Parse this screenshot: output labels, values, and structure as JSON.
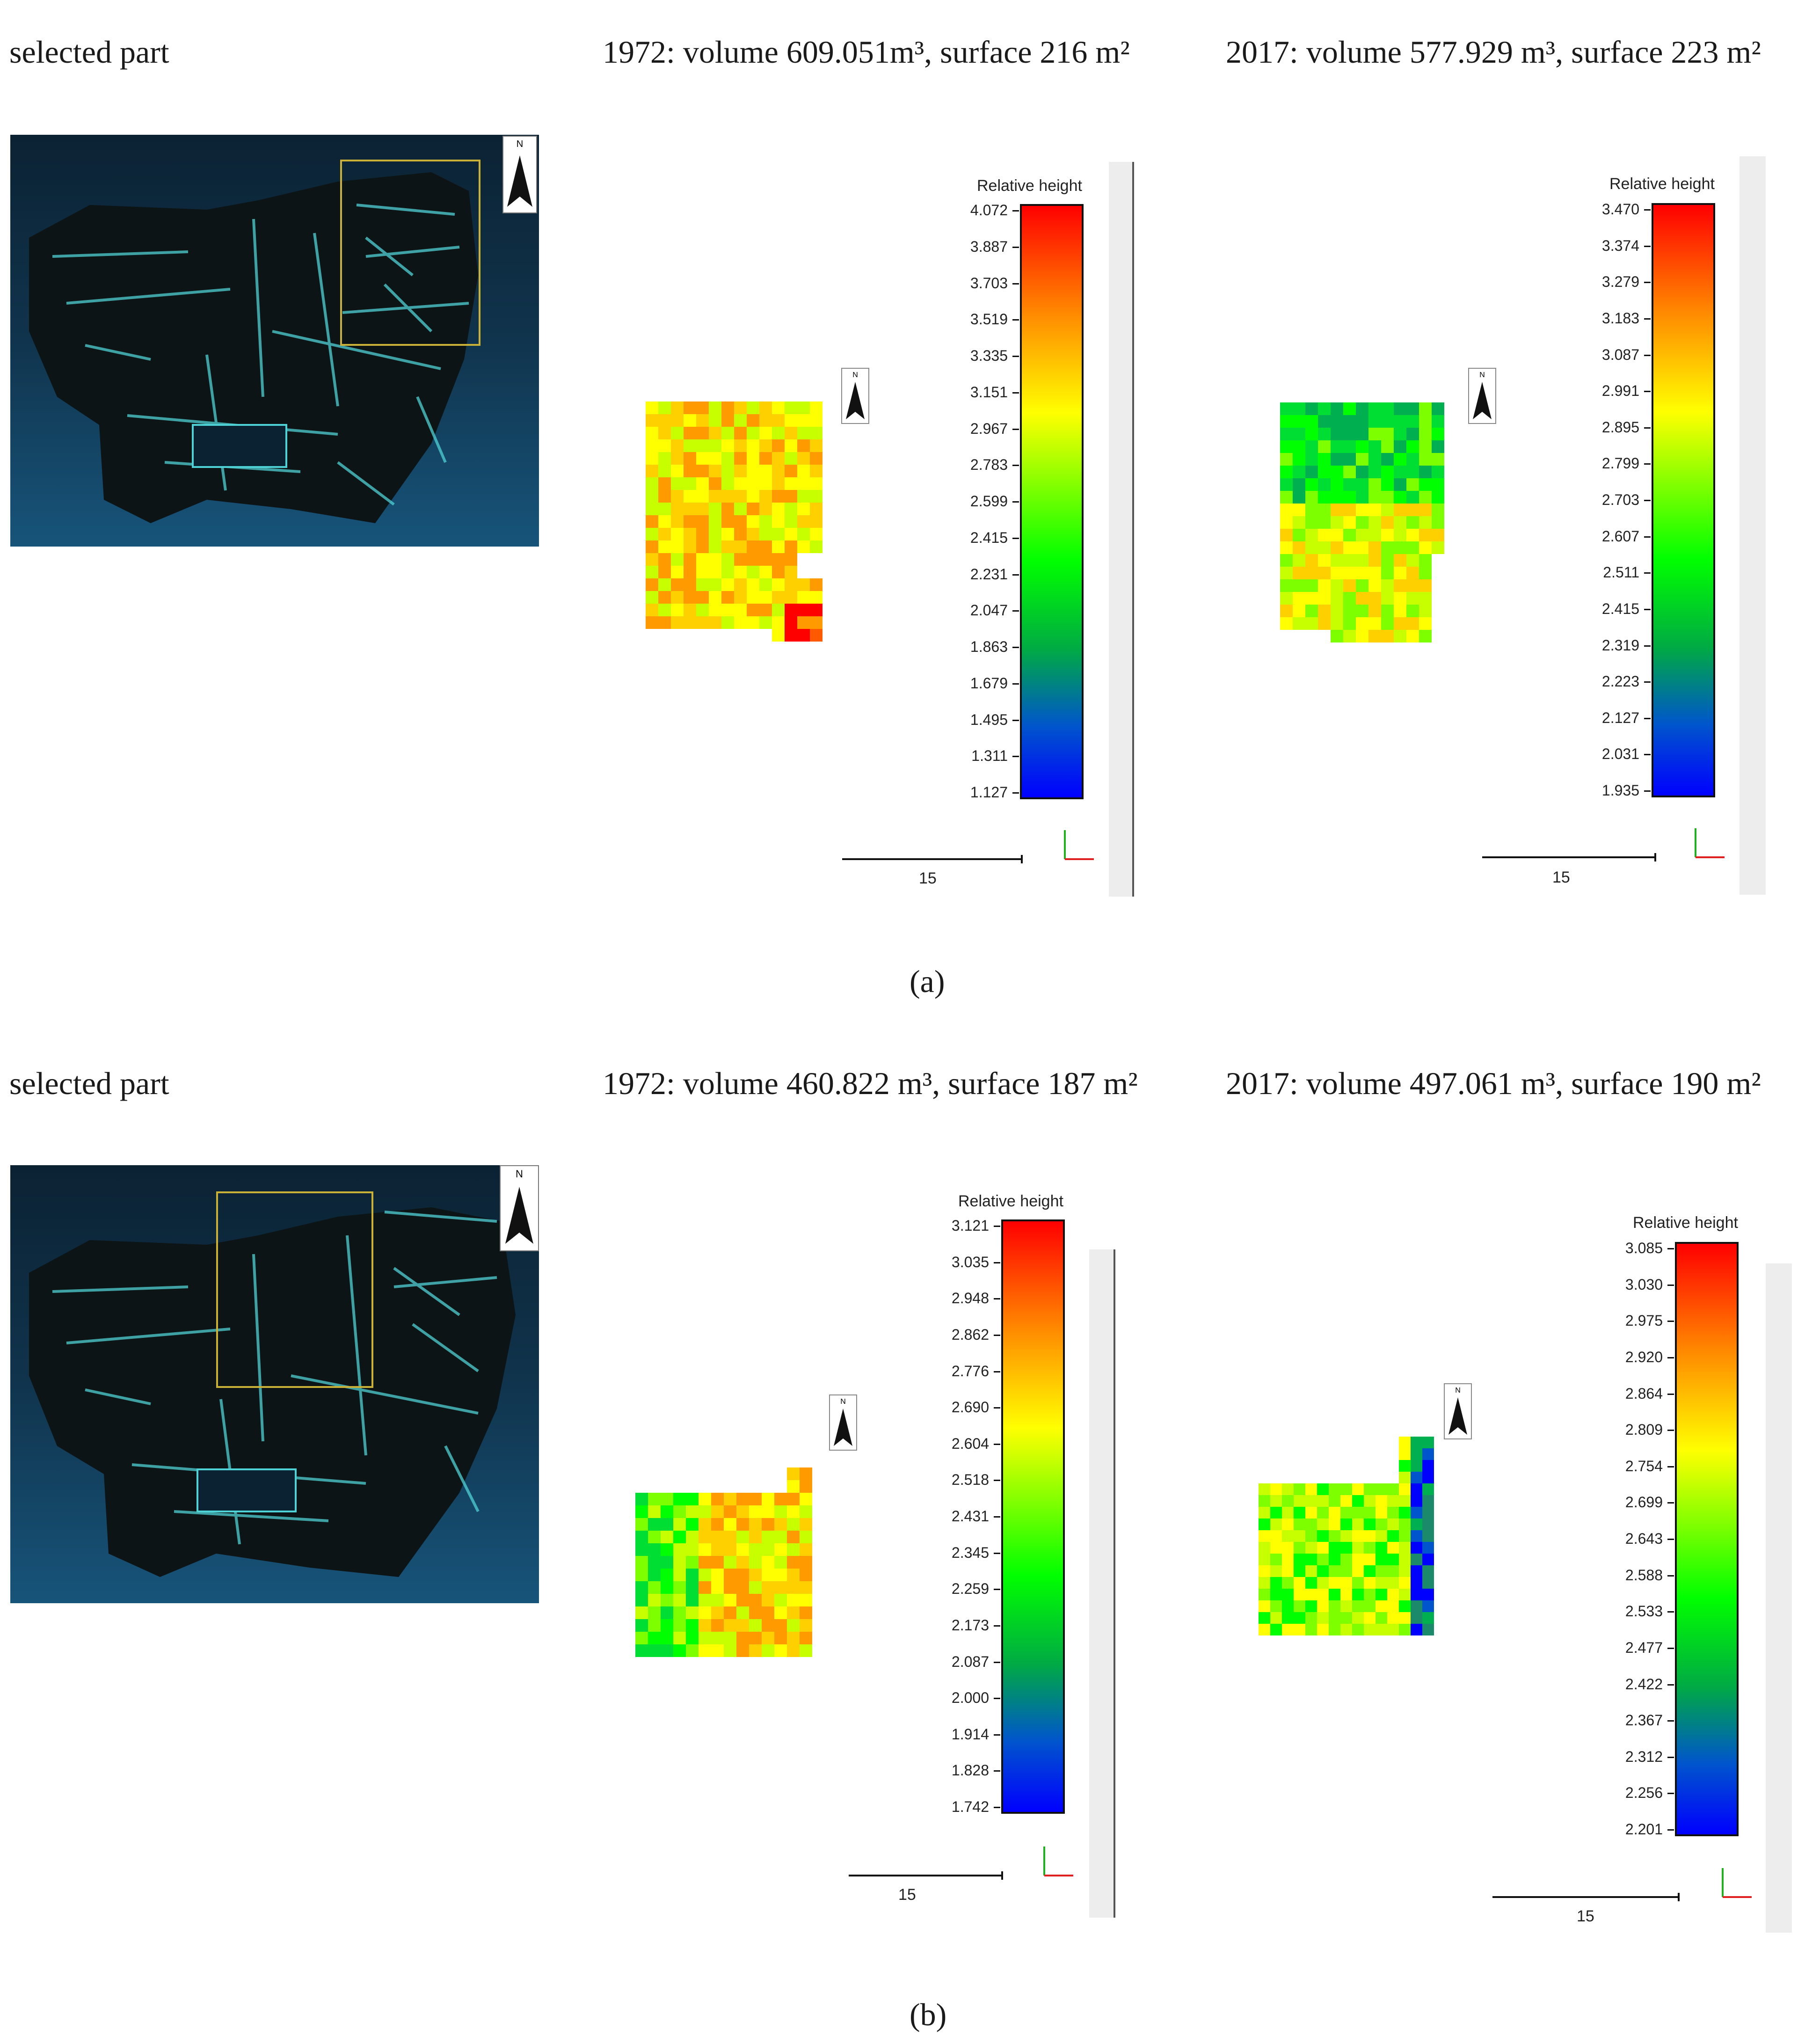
{
  "panel_a": {
    "selected_label": "selected part",
    "title_1972": "1972: volume 609.051m³, surface 216 m²",
    "title_2017": "2017: volume 577.929 m³, surface 223 m²",
    "caption": "(a)",
    "north_label": "N",
    "legend_1972": {
      "title": "Relative height",
      "ticks": [
        "4.072",
        "3.887",
        "3.703",
        "3.519",
        "3.335",
        "3.151",
        "2.967",
        "2.783",
        "2.599",
        "2.415",
        "2.231",
        "2.047",
        "1.863",
        "1.679",
        "1.495",
        "1.311",
        "1.127"
      ],
      "scale_label": "15"
    },
    "legend_2017": {
      "title": "Relative height",
      "ticks": [
        "3.470",
        "3.374",
        "3.279",
        "3.183",
        "3.087",
        "2.991",
        "2.895",
        "2.799",
        "2.703",
        "2.607",
        "2.511",
        "2.415",
        "2.319",
        "2.223",
        "2.127",
        "2.031",
        "1.935"
      ],
      "scale_label": "15"
    }
  },
  "panel_b": {
    "selected_label": "selected part",
    "title_1972": "1972: volume 460.822 m³, surface 187 m²",
    "title_2017": "2017: volume 497.061 m³, surface 190 m²",
    "caption": "(b)",
    "north_label": "N",
    "legend_1972": {
      "title": "Relative height",
      "ticks": [
        "3.121",
        "3.035",
        "2.948",
        "2.862",
        "2.776",
        "2.690",
        "2.604",
        "2.518",
        "2.431",
        "2.345",
        "2.259",
        "2.173",
        "2.087",
        "2.000",
        "1.914",
        "1.828",
        "1.742"
      ],
      "scale_label": "15"
    },
    "legend_2017": {
      "title": "Relative height",
      "ticks": [
        "3.085",
        "3.030",
        "2.975",
        "2.920",
        "2.864",
        "2.809",
        "2.754",
        "2.699",
        "2.643",
        "2.588",
        "2.533",
        "2.477",
        "2.422",
        "2.367",
        "2.312",
        "2.256",
        "2.201"
      ],
      "scale_label": "15"
    }
  },
  "colors": {
    "selection_rect": "#c9b037",
    "thumb_top": "#0b2233",
    "thumb_bottom": "#17547a",
    "axis_x": "#e02020",
    "axis_y": "#20b020"
  }
}
